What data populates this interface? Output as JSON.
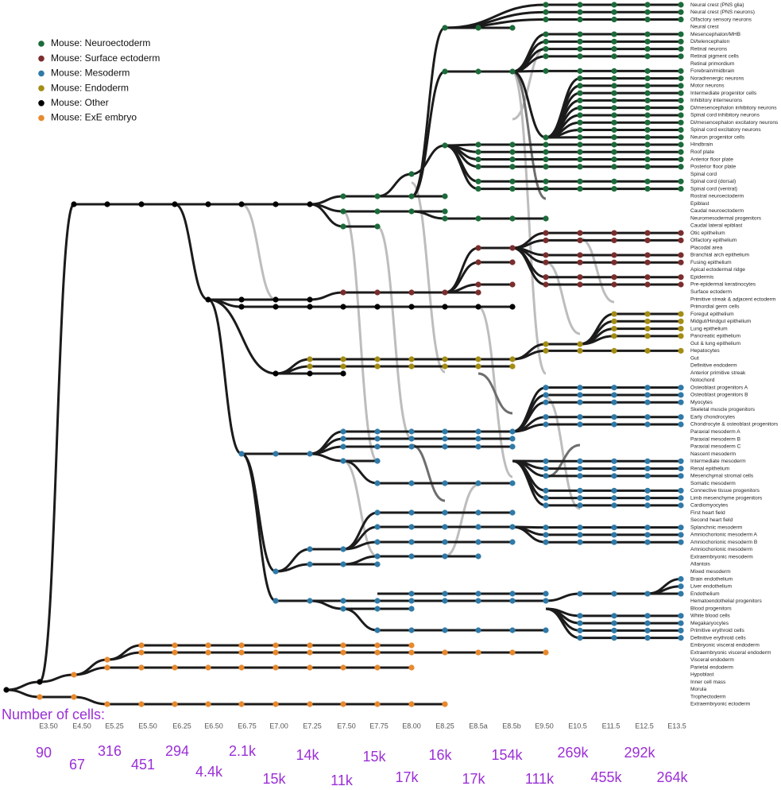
{
  "legend": [
    {
      "label": "Mouse: Neuroectoderm",
      "color": "#1c6b3a"
    },
    {
      "label": "Mouse: Surface ectoderm",
      "color": "#7b2d2d"
    },
    {
      "label": "Mouse: Mesoderm",
      "color": "#2f7aa8"
    },
    {
      "label": "Mouse: Endoderm",
      "color": "#a38d14"
    },
    {
      "label": "Mouse: Other",
      "color": "#000000"
    },
    {
      "label": "Mouse: ExE embryo",
      "color": "#e8892e"
    }
  ],
  "timepoints": [
    "E3.50",
    "E4.50",
    "E5.25",
    "E5.50",
    "E6.25",
    "E6.50",
    "E6.75",
    "E7.00",
    "E7.25",
    "E7.50",
    "E7.75",
    "E8.00",
    "E8.25",
    "E8.5a",
    "E8.5b",
    "E9.50",
    "E10.5",
    "E11.5",
    "E12.5",
    "E13.5"
  ],
  "cell_counts_title": "Number of cells:",
  "cell_counts": [
    "90",
    "67",
    "316",
    "451",
    "294",
    "4.4k",
    "2.1k",
    "15k",
    "14k",
    "11k",
    "15k",
    "17k",
    "16k",
    "17k",
    "154k",
    "111k",
    "269k",
    "455k",
    "292k",
    "264k"
  ],
  "cell_types": [
    "Neural crest (PNS glia)",
    "Neural crest (PNS neurons)",
    "Olfactory sensory neurons",
    "Neural crest",
    "Mesencephalon/MHB",
    "Di/telencephalon",
    "Retinal neurons",
    "Retinal pigment cells",
    "Retinal primordium",
    "Forebrain/midbrain",
    "Noradrenergic neurons",
    "Motor neurons",
    "Intermediate progenitor cells",
    "Inhibitory interneurons",
    "Di/mesencephalon inhibitory neurons",
    "Spinal cord inhibitory neurons",
    "Di/mesencephalon excitatory neurons",
    "Spinal cord excitatory neurons",
    "Neuron progenitor cells",
    "Hindbrain",
    "Roof plate",
    "Anterior floor plate",
    "Posterior floor plate",
    "Spinal cord",
    "Spinal cord (dorsal)",
    "Spinal cord (ventral)",
    "Rostral neuroectoderm",
    "Epiblast",
    "Caudal neuroectoderm",
    "Neuromesodermal progenitors",
    "Caudal lateral epiblast",
    "Otic epithelium",
    "Olfactory epithelium",
    "Placodal area",
    "Branchial arch epithelium",
    "Fusing epithelium",
    "Apical ectodermal ridge",
    "Epidermis",
    "Pre-epidermal keratinocytes",
    "Surface ectoderm",
    "Primitive streak & adjacent ectoderm",
    "Primordial germ cells",
    "Foregut epithelium",
    "Midgut/Hindgut epithelium",
    "Lung epithelium",
    "Pancreatic epithelium",
    "Gut & lung epithelium",
    "Hepatocytes",
    "Gut",
    "Definitive endoderm",
    "Anterior primitive streak",
    "Notochord",
    "Osteoblast progenitors A",
    "Osteoblast progenitors B",
    "Myocytes",
    "Skeletal muscle progenitors",
    "Early chondrocytes",
    "Chondrocyte & osteoblast progenitors",
    "Paraxial mesoderm A",
    "Paraxial mesoderm B",
    "Paraxial mesoderm C",
    "Nascent mesoderm",
    "Intermediate mesoderm",
    "Renal epithelium",
    "Mesenchymal stromal cells",
    "Somatic mesoderm",
    "Connective tissue progenitors",
    "Limb mesenchyme progenitors",
    "Cardiomyocytes",
    "First heart field",
    "Second heart field",
    "Splanchnic mesoderm",
    "Amniochorionic mesoderm A",
    "Amniochorionic mesoderm B",
    "Amniochorionic mesoderm",
    "Extraembryonic mesoderm",
    "Allantois",
    "Mixed mesoderm",
    "Brain endothelium",
    "Liver endothelium",
    "Endothelium",
    "Hematoendothelial progenitors",
    "Blood progenitors",
    "White blood cells",
    "Megakaryocytes",
    "Primitive erythroid cells",
    "Definitive erythroid cells",
    "Embryonic visceral endoderm",
    "Extraembryonic visceral endoderm",
    "Visceral endoderm",
    "Parietal endoderm",
    "Hypoblast",
    "Inner cell mass",
    "Morula",
    "Trophectoderm",
    "Extraembryonic ectoderm"
  ]
}
